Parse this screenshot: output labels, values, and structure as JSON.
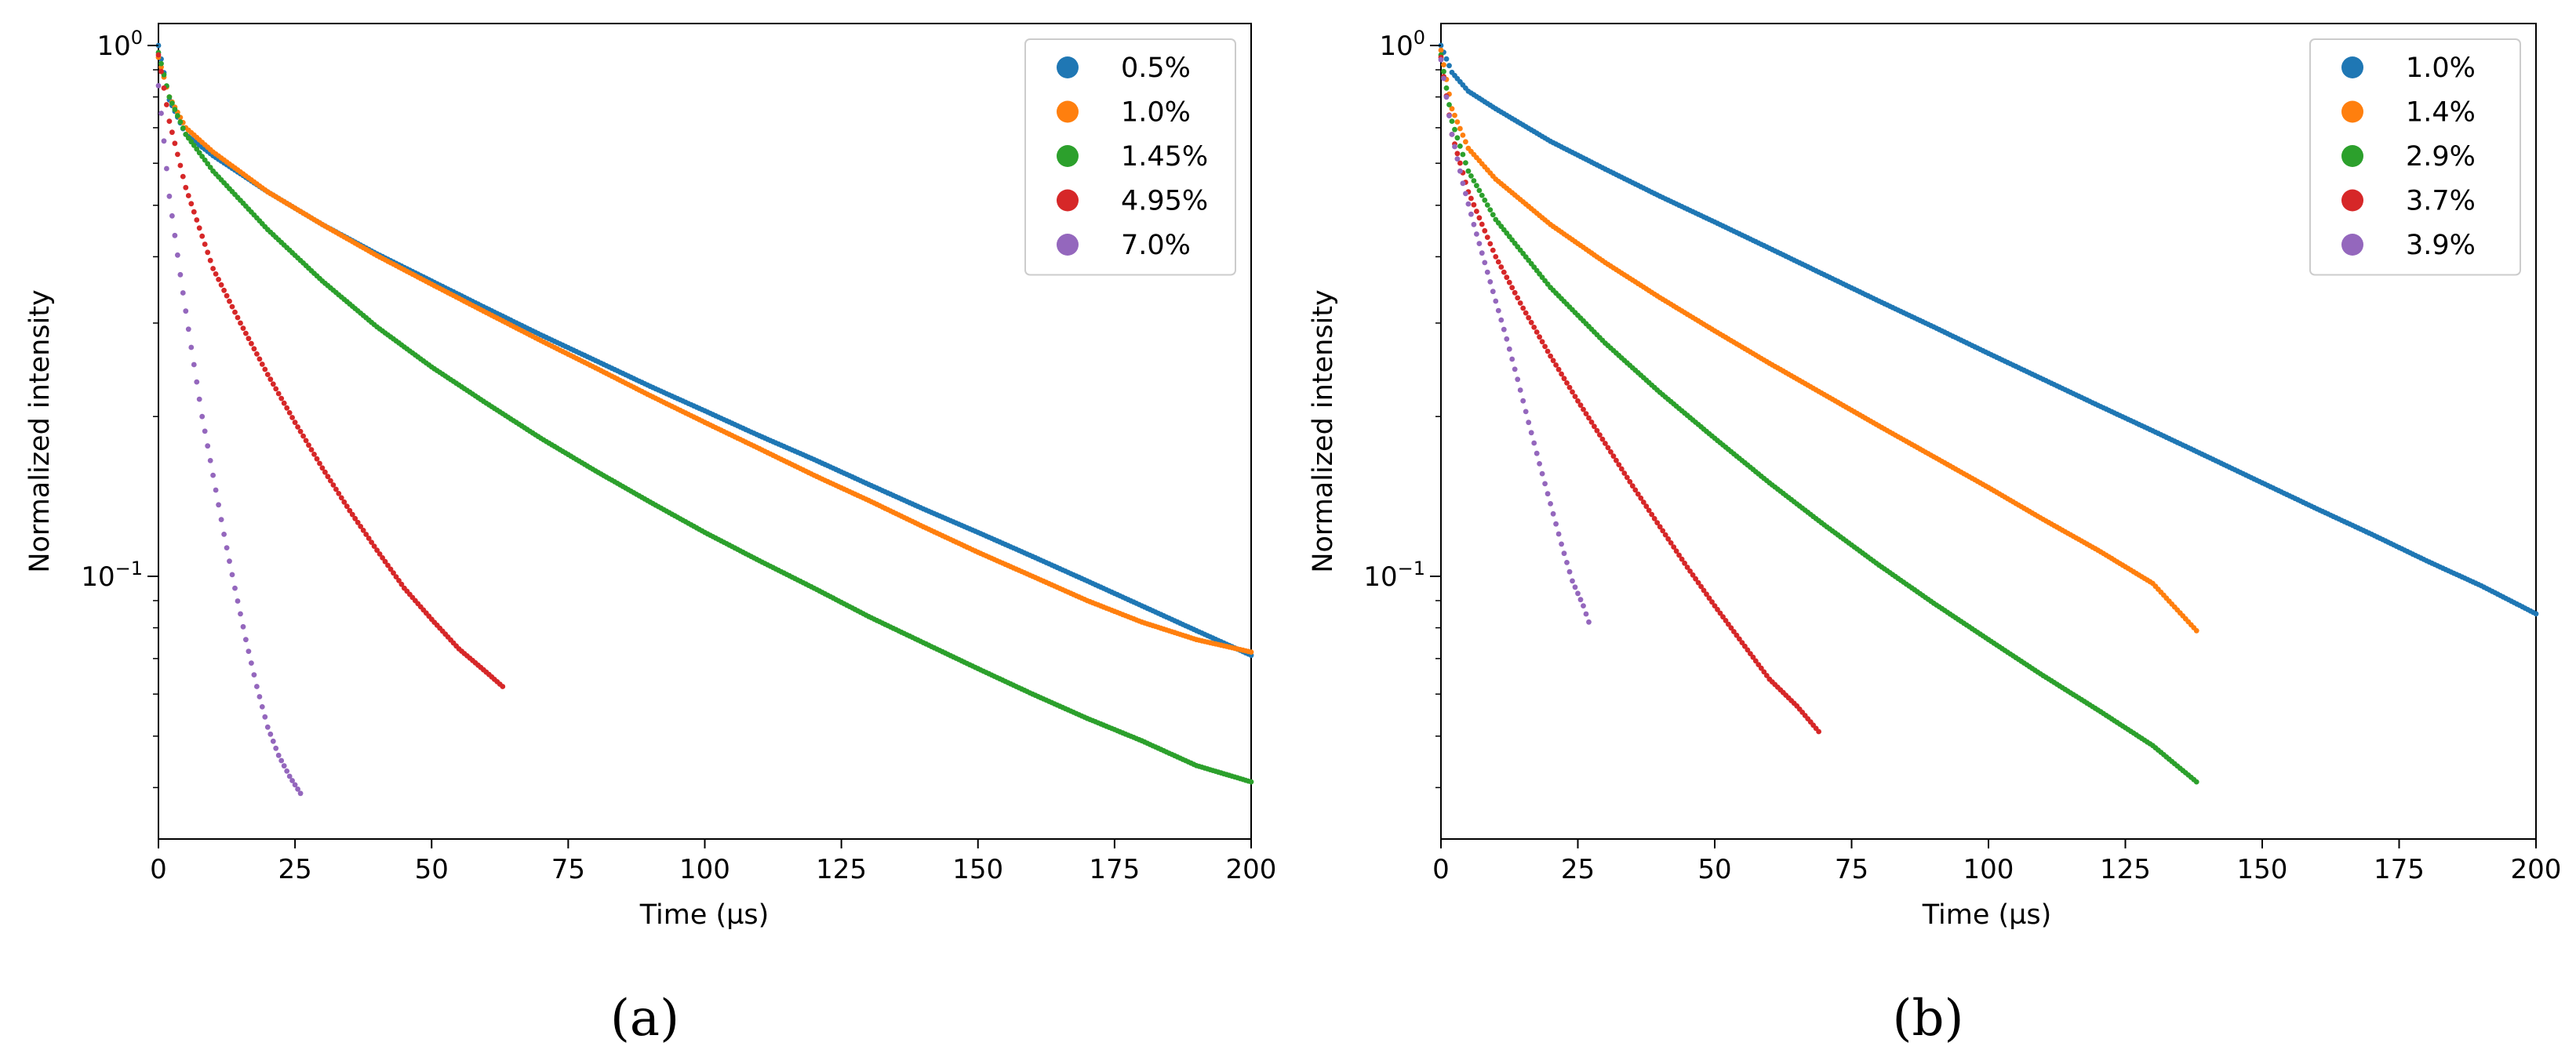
{
  "chart_data": [
    {
      "type": "scatter",
      "panel_label": "(a)",
      "title": "",
      "xlabel": "Time (µs)",
      "ylabel": "Normalized intensity",
      "xlim": [
        0,
        200
      ],
      "ylim": [
        0.032,
        1.1
      ],
      "yscale": "log",
      "xticks": [
        0,
        25,
        50,
        75,
        100,
        125,
        150,
        175,
        200
      ],
      "xtick_labels": [
        "0",
        "25",
        "50",
        "75",
        "100",
        "125",
        "150",
        "175",
        "200"
      ],
      "yticks": [
        1.0,
        0.1
      ],
      "ytick_labels": [
        "10^0",
        "10^−1"
      ],
      "legend_position": "top-right",
      "series": [
        {
          "name": "0.5%",
          "color": "#1f77b4",
          "x": [
            0,
            2,
            5,
            10,
            20,
            30,
            40,
            50,
            60,
            70,
            80,
            90,
            100,
            110,
            120,
            130,
            140,
            150,
            160,
            170,
            180,
            190,
            200
          ],
          "y": [
            1.0,
            0.79,
            0.68,
            0.62,
            0.53,
            0.46,
            0.405,
            0.36,
            0.32,
            0.285,
            0.255,
            0.228,
            0.205,
            0.184,
            0.166,
            0.149,
            0.134,
            0.121,
            0.109,
            0.098,
            0.088,
            0.079,
            0.071
          ]
        },
        {
          "name": "1.0%",
          "color": "#ff7f0e",
          "x": [
            0,
            2,
            5,
            10,
            20,
            30,
            40,
            50,
            60,
            70,
            80,
            90,
            100,
            110,
            120,
            130,
            140,
            150,
            160,
            170,
            180,
            190,
            200
          ],
          "y": [
            0.95,
            0.8,
            0.7,
            0.63,
            0.53,
            0.46,
            0.402,
            0.355,
            0.314,
            0.278,
            0.247,
            0.219,
            0.195,
            0.174,
            0.155,
            0.139,
            0.124,
            0.111,
            0.1,
            0.09,
            0.082,
            0.076,
            0.072
          ]
        },
        {
          "name": "1.45%",
          "color": "#2ca02c",
          "x": [
            0,
            2,
            5,
            10,
            20,
            30,
            40,
            50,
            60,
            70,
            80,
            90,
            100,
            110,
            120,
            130,
            140,
            150,
            160,
            170,
            180,
            190,
            200
          ],
          "y": [
            0.97,
            0.8,
            0.68,
            0.58,
            0.45,
            0.36,
            0.295,
            0.248,
            0.212,
            0.182,
            0.158,
            0.138,
            0.121,
            0.107,
            0.095,
            0.084,
            0.075,
            0.067,
            0.06,
            0.054,
            0.049,
            0.044,
            0.041
          ]
        },
        {
          "name": "4.95%",
          "color": "#d62728",
          "x": [
            0,
            2,
            5,
            10,
            15,
            20,
            25,
            30,
            35,
            40,
            45,
            50,
            55,
            60,
            63
          ],
          "y": [
            0.96,
            0.72,
            0.54,
            0.38,
            0.3,
            0.24,
            0.195,
            0.16,
            0.133,
            0.112,
            0.095,
            0.083,
            0.073,
            0.066,
            0.062
          ]
        },
        {
          "name": "7.0%",
          "color": "#9467bd",
          "x": [
            0,
            2,
            4,
            6,
            8,
            10,
            12,
            14,
            16,
            18,
            20,
            22,
            24,
            26
          ],
          "y": [
            0.84,
            0.52,
            0.37,
            0.27,
            0.2,
            0.155,
            0.12,
            0.095,
            0.076,
            0.062,
            0.052,
            0.046,
            0.042,
            0.039
          ]
        }
      ]
    },
    {
      "type": "scatter",
      "panel_label": "(b)",
      "title": "",
      "xlabel": "Time (µs)",
      "ylabel": "Normalized intensity",
      "xlim": [
        0,
        200
      ],
      "ylim": [
        0.032,
        1.1
      ],
      "yscale": "log",
      "xticks": [
        0,
        25,
        50,
        75,
        100,
        125,
        150,
        175,
        200
      ],
      "xtick_labels": [
        "0",
        "25",
        "50",
        "75",
        "100",
        "125",
        "150",
        "175",
        "200"
      ],
      "yticks": [
        1.0,
        0.1
      ],
      "ytick_labels": [
        "10^0",
        "10^−1"
      ],
      "legend_position": "top-right",
      "series": [
        {
          "name": "1.0%",
          "color": "#1f77b4",
          "x": [
            0,
            2,
            5,
            10,
            20,
            30,
            40,
            50,
            60,
            70,
            80,
            90,
            100,
            110,
            120,
            130,
            140,
            150,
            160,
            170,
            180,
            190,
            200
          ],
          "y": [
            1.0,
            0.89,
            0.82,
            0.76,
            0.66,
            0.585,
            0.52,
            0.465,
            0.415,
            0.37,
            0.33,
            0.295,
            0.263,
            0.235,
            0.21,
            0.188,
            0.168,
            0.15,
            0.134,
            0.12,
            0.107,
            0.096,
            0.085
          ]
        },
        {
          "name": "1.4%",
          "color": "#ff7f0e",
          "x": [
            0,
            2,
            5,
            10,
            20,
            30,
            40,
            50,
            60,
            70,
            80,
            90,
            100,
            110,
            120,
            130,
            138
          ],
          "y": [
            0.98,
            0.76,
            0.64,
            0.56,
            0.46,
            0.39,
            0.335,
            0.29,
            0.252,
            0.22,
            0.192,
            0.168,
            0.147,
            0.128,
            0.112,
            0.097,
            0.079
          ]
        },
        {
          "name": "2.9%",
          "color": "#2ca02c",
          "x": [
            0,
            2,
            5,
            10,
            20,
            30,
            40,
            50,
            60,
            70,
            80,
            90,
            100,
            110,
            120,
            130,
            138
          ],
          "y": [
            0.96,
            0.72,
            0.58,
            0.47,
            0.35,
            0.275,
            0.222,
            0.182,
            0.15,
            0.125,
            0.105,
            0.089,
            0.076,
            0.065,
            0.056,
            0.048,
            0.041
          ]
        },
        {
          "name": "3.7%",
          "color": "#d62728",
          "x": [
            0,
            2,
            5,
            10,
            15,
            20,
            25,
            30,
            35,
            40,
            45,
            50,
            55,
            60,
            65,
            69
          ],
          "y": [
            0.95,
            0.68,
            0.53,
            0.4,
            0.32,
            0.26,
            0.214,
            0.178,
            0.148,
            0.124,
            0.104,
            0.088,
            0.075,
            0.064,
            0.057,
            0.051
          ]
        },
        {
          "name": "3.9%",
          "color": "#9467bd",
          "x": [
            0,
            2,
            4,
            6,
            8,
            10,
            12,
            14,
            16,
            18,
            20,
            22,
            24,
            26,
            27
          ],
          "y": [
            0.94,
            0.68,
            0.55,
            0.46,
            0.39,
            0.33,
            0.28,
            0.235,
            0.195,
            0.163,
            0.137,
            0.115,
            0.098,
            0.088,
            0.082
          ]
        }
      ]
    }
  ]
}
